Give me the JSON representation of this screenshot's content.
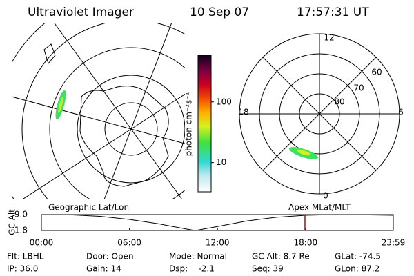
{
  "header": {
    "title": "Ultraviolet Imager",
    "date": "10 Sep 07",
    "time": "17:57:31 UT"
  },
  "left_map": {
    "label": "Geographic Lat/Lon"
  },
  "right_map": {
    "label": "Apex MLat/MLT",
    "mlt_labels": [
      "12",
      "18",
      "6",
      "0"
    ],
    "lat_labels": [
      "60",
      "70",
      "80"
    ]
  },
  "colorbar": {
    "label": "photon cm⁻²s⁻¹",
    "lim": [
      3.3,
      590
    ],
    "log": true,
    "ticks": [
      10,
      100
    ]
  },
  "altitude_plot": {
    "ylabel": "GC Alt",
    "x": [
      0,
      2,
      4,
      6,
      8,
      10,
      10.5,
      12,
      14,
      16,
      18,
      20,
      22,
      23.98
    ],
    "values": [
      9.0,
      8.9,
      8.2,
      6.8,
      4.8,
      2.3,
      1.8,
      3.6,
      6.1,
      7.8,
      8.7,
      9.0,
      8.9,
      8.7
    ],
    "color": "#000000",
    "current_time": 17.96,
    "marker_color": "#cc0000",
    "xlim": [
      0,
      23.98
    ],
    "ylim": [
      1.8,
      9.0
    ],
    "xticks": [
      {
        "value": 0,
        "label": "00:00"
      },
      {
        "value": 6,
        "label": "06:00"
      },
      {
        "value": 12,
        "label": "12:00"
      },
      {
        "value": 18,
        "label": "18:00"
      },
      {
        "value": 23.98,
        "label": "23:59"
      }
    ],
    "yticks": [
      {
        "value": 1.8,
        "label": "1.8"
      },
      {
        "value": 9.0,
        "label": "9.0"
      }
    ]
  },
  "status": [
    [
      "Flt: LBHL",
      "Door: Open",
      "Mode: Normal",
      "GC Alt: 8.7 Re",
      "GLat: -74.5"
    ],
    [
      "IP: 36.0",
      "Gain: 14",
      "Dsp:    -2.1",
      "Seq: 39",
      "GLon: 87.2"
    ]
  ]
}
